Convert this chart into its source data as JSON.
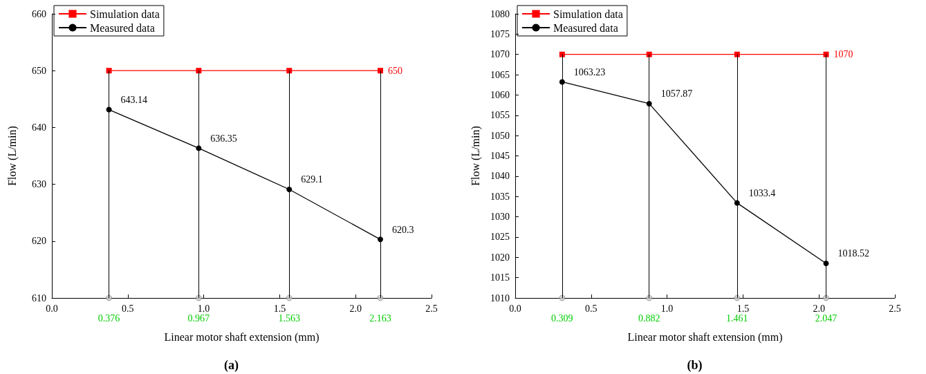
{
  "chart_data": [
    {
      "type": "line",
      "xlabel": "Linear motor shaft extension (mm)",
      "ylabel": "Flow (L/min)",
      "annotations": [
        "(a)",
        {
          "text": "0.376",
          "x": 0.376,
          "y": 610
        },
        {
          "text": "0.967",
          "x": 0.967,
          "y": 610
        },
        {
          "text": "1.563",
          "x": 1.563,
          "y": 610
        },
        {
          "text": "2.163",
          "x": 2.163,
          "y": 610
        }
      ],
      "legend": "top left",
      "grid": false,
      "xlim": [
        0,
        2.5
      ],
      "xticks": [
        {
          "value": 0,
          "label": "0.0"
        },
        0.5,
        {
          "value": 1,
          "label": "1.0"
        },
        1.5,
        {
          "value": 2,
          "label": "2.0"
        },
        2.5
      ],
      "ylim": [
        610,
        660
      ],
      "yticks": [
        610,
        620,
        630,
        640,
        650,
        660
      ],
      "ref_lines": [
        {
          "axis": "x",
          "value": 0.376,
          "color": "#000000"
        },
        {
          "axis": "x",
          "value": 0.967,
          "color": "#000000"
        },
        {
          "axis": "x",
          "value": 1.563,
          "color": "#000000"
        },
        {
          "axis": "x",
          "value": 2.163,
          "color": "#000000"
        }
      ],
      "series": [
        {
          "name": "Simulation data",
          "color": "#ff0000",
          "marker": "square",
          "x": [
            0.376,
            0.967,
            1.563,
            2.163
          ],
          "values": [
            650,
            650,
            650,
            650
          ],
          "value_labels": [
            null,
            null,
            null,
            "650"
          ]
        },
        {
          "name": "Measured data",
          "color": "#000000",
          "marker": "circle",
          "x": [
            0.376,
            0.967,
            1.563,
            2.163
          ],
          "values": [
            643.14,
            636.35,
            629.1,
            620.3
          ],
          "value_labels": [
            "643.14",
            "636.35",
            "629.1",
            "620.3"
          ]
        },
        {
          "type": "scatter",
          "color": "#c8c8c8",
          "marker": "circle",
          "x": [
            0.376,
            0.967,
            1.563,
            2.163
          ],
          "values": [
            610,
            610,
            610,
            610
          ]
        }
      ]
    },
    {
      "type": "line",
      "xlabel": "Linear motor shaft extension (mm)",
      "ylabel": "Flow (L/min)",
      "annotations": [
        "(b)",
        {
          "text": "0.309",
          "x": 0.309,
          "y": 1010
        },
        {
          "text": "0.882",
          "x": 0.882,
          "y": 1010
        },
        {
          "text": "1.461",
          "x": 1.461,
          "y": 1010
        },
        {
          "text": "2.047",
          "x": 2.047,
          "y": 1010
        }
      ],
      "legend": "top left",
      "grid": false,
      "xlim": [
        0,
        2.5
      ],
      "xticks": [
        {
          "value": 0,
          "label": "0.0"
        },
        0.5,
        {
          "value": 1,
          "label": "1.0"
        },
        1.5,
        {
          "value": 2,
          "label": "2.0"
        },
        2.5
      ],
      "ylim": [
        1010,
        1080
      ],
      "yticks": [
        1010,
        1015,
        1020,
        1025,
        1030,
        1035,
        1040,
        1045,
        1050,
        1055,
        1060,
        1065,
        1070,
        1075,
        1080
      ],
      "ref_lines": [
        {
          "axis": "x",
          "value": 0.309,
          "color": "#000000"
        },
        {
          "axis": "x",
          "value": 0.882,
          "color": "#000000"
        },
        {
          "axis": "x",
          "value": 1.461,
          "color": "#000000"
        },
        {
          "axis": "x",
          "value": 2.047,
          "color": "#000000"
        }
      ],
      "series": [
        {
          "name": "Simulation data",
          "color": "#ff0000",
          "marker": "square",
          "x": [
            0.309,
            0.882,
            1.461,
            2.047
          ],
          "values": [
            1070,
            1070,
            1070,
            1070
          ],
          "value_labels": [
            null,
            null,
            null,
            "1070"
          ]
        },
        {
          "name": "Measured data",
          "color": "#000000",
          "marker": "circle",
          "x": [
            0.309,
            0.882,
            1.461,
            2.047
          ],
          "values": [
            1063.23,
            1057.87,
            1033.4,
            1018.52
          ],
          "value_labels": [
            "1063.23",
            "1057.87",
            "1033.4",
            "1018.52"
          ]
        },
        {
          "type": "scatter",
          "color": "#c8c8c8",
          "marker": "circle",
          "x": [
            0.309,
            0.882,
            1.461,
            2.047
          ],
          "values": [
            1010,
            1010,
            1010,
            1010
          ]
        }
      ]
    }
  ]
}
